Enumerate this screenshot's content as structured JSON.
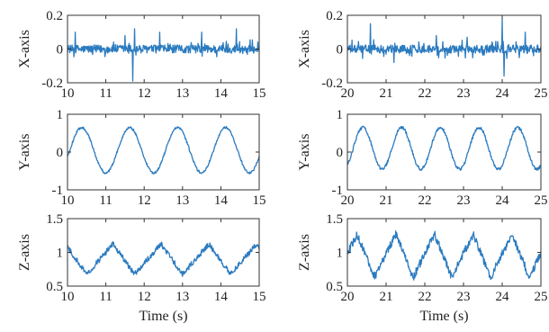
{
  "colors": {
    "series": "#2b7bbf",
    "axes": "#333333"
  },
  "chart_data": [
    {
      "id": "left-x",
      "type": "line",
      "ylabel": "X-axis",
      "xlabel": "",
      "xlim": [
        10,
        15
      ],
      "ylim": [
        -0.2,
        0.2
      ],
      "xticks": [
        10,
        11,
        12,
        13,
        14,
        15
      ],
      "yticks": [
        -0.2,
        0,
        0.2
      ],
      "xtick_labels": [
        "10",
        "11",
        "12",
        "13",
        "14",
        "15"
      ],
      "ytick_labels": [
        "-0.2",
        "0",
        "0.2"
      ],
      "signal": {
        "kind": "noise",
        "base": 0.0,
        "amp": 0.04,
        "spikes": [
          [
            10.2,
            0.1
          ],
          [
            11.5,
            0.08
          ],
          [
            11.7,
            -0.19
          ],
          [
            11.75,
            0.12
          ],
          [
            12.4,
            0.1
          ],
          [
            13.5,
            0.1
          ],
          [
            14.4,
            0.12
          ]
        ]
      }
    },
    {
      "id": "right-x",
      "type": "line",
      "ylabel": "X-axis",
      "xlabel": "",
      "xlim": [
        20,
        25
      ],
      "ylim": [
        -0.2,
        0.2
      ],
      "xticks": [
        20,
        21,
        22,
        23,
        24,
        25
      ],
      "yticks": [
        -0.2,
        0,
        0.2
      ],
      "xtick_labels": [
        "20",
        "21",
        "22",
        "23",
        "24",
        "25"
      ],
      "ytick_labels": [
        "-0.2",
        "0",
        "0.2"
      ],
      "signal": {
        "kind": "noise",
        "base": 0.0,
        "amp": 0.04,
        "spikes": [
          [
            20.6,
            0.15
          ],
          [
            21.2,
            -0.08
          ],
          [
            22.3,
            0.08
          ],
          [
            23.1,
            0.07
          ],
          [
            24.0,
            0.18
          ],
          [
            24.05,
            -0.16
          ],
          [
            24.6,
            0.1
          ]
        ]
      }
    },
    {
      "id": "left-y",
      "type": "line",
      "ylabel": "Y-axis",
      "xlabel": "",
      "xlim": [
        10,
        15
      ],
      "ylim": [
        -1,
        1
      ],
      "xticks": [
        10,
        11,
        12,
        13,
        14,
        15
      ],
      "yticks": [
        -1,
        0,
        1
      ],
      "xtick_labels": [
        "10",
        "11",
        "12",
        "13",
        "14",
        "15"
      ],
      "ytick_labels": [
        "-1",
        "0",
        "1"
      ],
      "signal": {
        "kind": "sine",
        "offset": 0.05,
        "amp": 0.6,
        "period": 1.25,
        "phase": 10.06,
        "noise": 0.03
      }
    },
    {
      "id": "right-y",
      "type": "line",
      "ylabel": "Y-axis",
      "xlabel": "",
      "xlim": [
        20,
        25
      ],
      "ylim": [
        -1,
        1
      ],
      "xticks": [
        20,
        21,
        22,
        23,
        24,
        25
      ],
      "yticks": [
        -1,
        0,
        1
      ],
      "xtick_labels": [
        "20",
        "21",
        "22",
        "23",
        "24",
        "25"
      ],
      "ytick_labels": [
        "-1",
        "0",
        "1"
      ],
      "signal": {
        "kind": "sine",
        "offset": 0.1,
        "amp": 0.55,
        "period": 1.0,
        "phase": 20.15,
        "noise": 0.04
      }
    },
    {
      "id": "left-z",
      "type": "line",
      "ylabel": "Z-axis",
      "xlabel": "Time (s)",
      "xlim": [
        10,
        15
      ],
      "ylim": [
        0.5,
        1.5
      ],
      "xticks": [
        10,
        11,
        12,
        13,
        14,
        15
      ],
      "yticks": [
        0.5,
        1,
        1.5
      ],
      "xtick_labels": [
        "10",
        "11",
        "12",
        "13",
        "14",
        "15"
      ],
      "ytick_labels": [
        "0.5",
        "1",
        "1.5"
      ],
      "signal": {
        "kind": "sawtooth",
        "offset": 0.9,
        "amp": 0.28,
        "period": 1.25,
        "phase": 10.5,
        "noise": 0.04
      }
    },
    {
      "id": "right-z",
      "type": "line",
      "ylabel": "Z-axis",
      "xlabel": "Time (s)",
      "xlim": [
        20,
        25
      ],
      "ylim": [
        0.5,
        1.5
      ],
      "xticks": [
        20,
        21,
        22,
        23,
        24,
        25
      ],
      "yticks": [
        0.5,
        1,
        1.5
      ],
      "xtick_labels": [
        "20",
        "21",
        "22",
        "23",
        "24",
        "25"
      ],
      "ytick_labels": [
        "0.5",
        "1",
        "1.5"
      ],
      "signal": {
        "kind": "sawtooth",
        "offset": 0.95,
        "amp": 0.4,
        "period": 1.0,
        "phase": 20.7,
        "noise": 0.06
      }
    }
  ]
}
